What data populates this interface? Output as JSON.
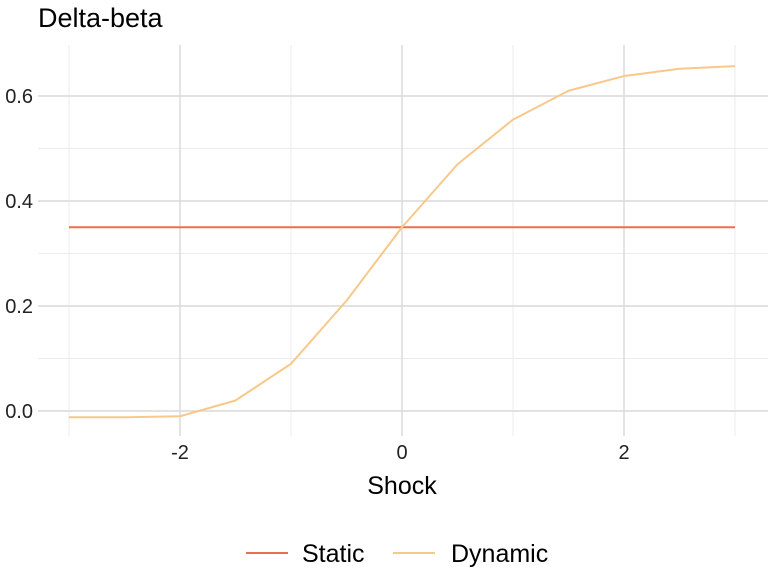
{
  "chart_data": {
    "type": "line",
    "title": "Delta-beta",
    "xlabel": "Shock",
    "ylabel": "",
    "xlim": [
      -3,
      3
    ],
    "ylim": [
      -0.045,
      0.7
    ],
    "x_ticks": [
      -2,
      0,
      2
    ],
    "x_tick_labels": [
      "-2",
      "0",
      "2"
    ],
    "y_ticks": [
      0.0,
      0.2,
      0.4,
      0.6
    ],
    "y_tick_labels": [
      "0.0",
      "0.2",
      "0.4",
      "0.6"
    ],
    "grid": true,
    "legend_position": "bottom",
    "x": [
      -3,
      -2.5,
      -2,
      -1.5,
      -1,
      -0.5,
      0,
      0.5,
      1,
      1.5,
      2,
      2.5,
      3
    ],
    "series": [
      {
        "name": "Static",
        "color": "#e8704f",
        "values": [
          0.35,
          0.35,
          0.35,
          0.35,
          0.35,
          0.35,
          0.35,
          0.35,
          0.35,
          0.35,
          0.35,
          0.35,
          0.35
        ]
      },
      {
        "name": "Dynamic",
        "color": "#f8c88a",
        "values": [
          -0.012,
          -0.012,
          -0.01,
          0.02,
          0.09,
          0.21,
          0.35,
          0.47,
          0.555,
          0.61,
          0.638,
          0.652,
          0.657
        ]
      }
    ]
  }
}
